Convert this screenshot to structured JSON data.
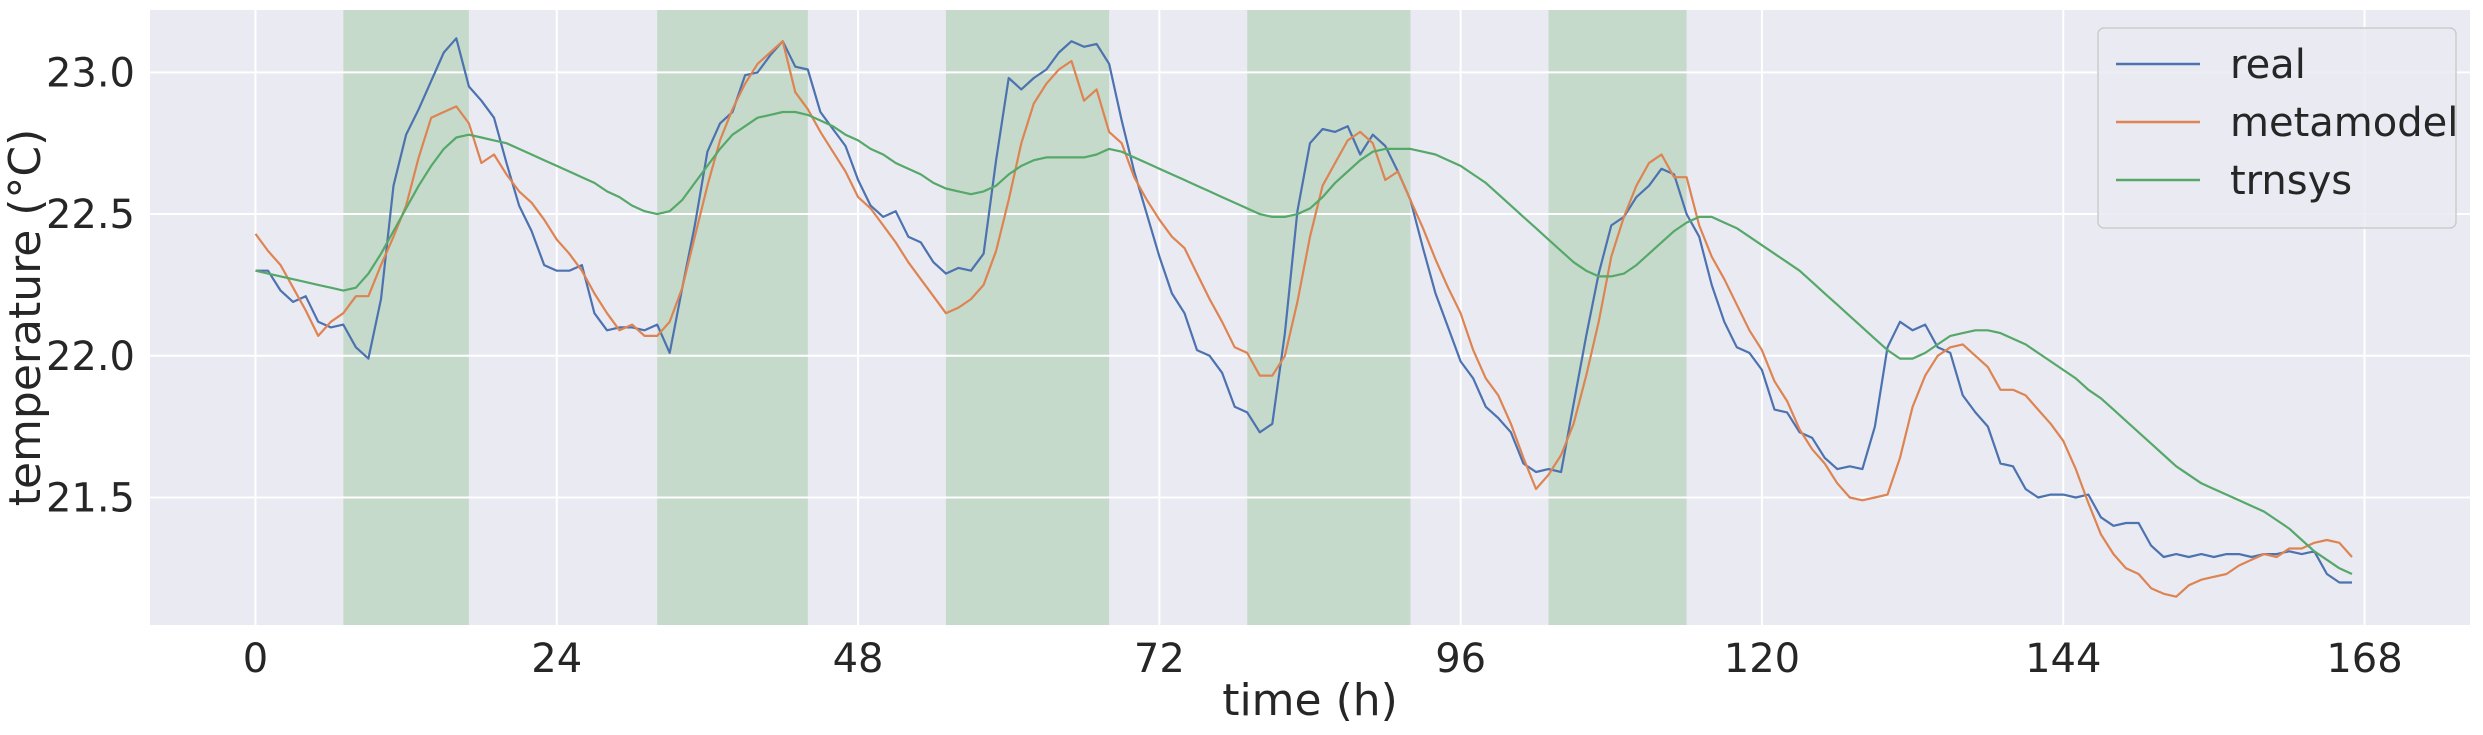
{
  "chart_data": {
    "type": "line",
    "title": "",
    "xlabel": "time (h)",
    "ylabel": "temperature (°C)",
    "xlim": [
      -8.4,
      176.4
    ],
    "ylim": [
      21.05,
      23.22
    ],
    "xticks": [
      0,
      24,
      48,
      72,
      96,
      120,
      144,
      168
    ],
    "yticks": [
      21.5,
      22.0,
      22.5,
      23.0
    ],
    "ytick_labels": [
      "21.5",
      "22.0",
      "22.5",
      "23.0"
    ],
    "grid": true,
    "legend_position": "top-right",
    "shaded_intervals": [
      [
        7,
        17
      ],
      [
        32,
        44
      ],
      [
        55,
        68
      ],
      [
        79,
        92
      ],
      [
        103,
        114
      ]
    ],
    "shade_color": "#c6dacb",
    "plot_background": "#eaeaf2",
    "series": [
      {
        "name": "real",
        "color": "#4c72b0",
        "x": [
          0,
          1,
          2,
          3,
          4,
          5,
          6,
          7,
          8,
          9,
          10,
          11,
          12,
          13,
          14,
          15,
          16,
          17,
          18,
          19,
          20,
          21,
          22,
          23,
          24,
          25,
          26,
          27,
          28,
          29,
          30,
          31,
          32,
          33,
          34,
          35,
          36,
          37,
          38,
          39,
          40,
          41,
          42,
          43,
          44,
          45,
          46,
          47,
          48,
          49,
          50,
          51,
          52,
          53,
          54,
          55,
          56,
          57,
          58,
          59,
          60,
          61,
          62,
          63,
          64,
          65,
          66,
          67,
          68,
          69,
          70,
          71,
          72,
          73,
          74,
          75,
          76,
          77,
          78,
          79,
          80,
          81,
          82,
          83,
          84,
          85,
          86,
          87,
          88,
          89,
          90,
          91,
          92,
          93,
          94,
          95,
          96,
          97,
          98,
          99,
          100,
          101,
          102,
          103,
          104,
          105,
          106,
          107,
          108,
          109,
          110,
          111,
          112,
          113,
          114,
          115,
          116,
          117,
          118,
          119,
          120,
          121,
          122,
          123,
          124,
          125,
          126,
          127,
          128,
          129,
          130,
          131,
          132,
          133,
          134,
          135,
          136,
          137,
          138,
          139,
          140,
          141,
          142,
          143,
          144,
          145,
          146,
          147,
          148,
          149,
          150,
          151,
          152,
          153,
          154,
          155,
          156,
          157,
          158,
          159,
          160,
          161,
          162,
          163,
          164,
          165,
          166,
          167
        ],
        "y": [
          22.3,
          22.3,
          22.23,
          22.19,
          22.21,
          22.12,
          22.1,
          22.11,
          22.03,
          21.99,
          22.2,
          22.6,
          22.78,
          22.87,
          22.97,
          23.07,
          23.12,
          22.95,
          22.9,
          22.84,
          22.68,
          22.53,
          22.44,
          22.32,
          22.3,
          22.3,
          22.32,
          22.15,
          22.09,
          22.1,
          22.1,
          22.09,
          22.11,
          22.01,
          22.24,
          22.46,
          22.72,
          22.82,
          22.86,
          22.99,
          23.0,
          23.06,
          23.11,
          23.02,
          23.01,
          22.86,
          22.8,
          22.74,
          22.62,
          22.53,
          22.49,
          22.51,
          22.42,
          22.4,
          22.33,
          22.29,
          22.31,
          22.3,
          22.36,
          22.69,
          22.98,
          22.94,
          22.98,
          23.01,
          23.07,
          23.11,
          23.09,
          23.1,
          23.03,
          22.83,
          22.65,
          22.5,
          22.35,
          22.22,
          22.15,
          22.02,
          22.0,
          21.94,
          21.82,
          21.8,
          21.73,
          21.76,
          22.08,
          22.51,
          22.75,
          22.8,
          22.79,
          22.81,
          22.71,
          22.78,
          22.74,
          22.65,
          22.55,
          22.38,
          22.22,
          22.1,
          21.98,
          21.92,
          21.82,
          21.78,
          21.73,
          21.62,
          21.59,
          21.6,
          21.59,
          21.83,
          22.07,
          22.29,
          22.46,
          22.49,
          22.56,
          22.6,
          22.66,
          22.64,
          22.5,
          22.42,
          22.25,
          22.12,
          22.03,
          22.01,
          21.95,
          21.81,
          21.8,
          21.73,
          21.71,
          21.64,
          21.6,
          21.61,
          21.6,
          21.75,
          22.03,
          22.12,
          22.09,
          22.11,
          22.03,
          22.01,
          21.86,
          21.8,
          21.75,
          21.62,
          21.61,
          21.53,
          21.5,
          21.51,
          21.51,
          21.5,
          21.51,
          21.43,
          21.4,
          21.41,
          21.41,
          21.33,
          21.29,
          21.3,
          21.29,
          21.3,
          21.29,
          21.3,
          21.3,
          21.29,
          21.3,
          21.3,
          21.31,
          21.3,
          21.31,
          21.23,
          21.2,
          21.2
        ]
      },
      {
        "name": "metamodel",
        "color": "#dd8452",
        "x": [
          0,
          1,
          2,
          3,
          4,
          5,
          6,
          7,
          8,
          9,
          10,
          11,
          12,
          13,
          14,
          15,
          16,
          17,
          18,
          19,
          20,
          21,
          22,
          23,
          24,
          25,
          26,
          27,
          28,
          29,
          30,
          31,
          32,
          33,
          34,
          35,
          36,
          37,
          38,
          39,
          40,
          41,
          42,
          43,
          44,
          45,
          46,
          47,
          48,
          49,
          50,
          51,
          52,
          53,
          54,
          55,
          56,
          57,
          58,
          59,
          60,
          61,
          62,
          63,
          64,
          65,
          66,
          67,
          68,
          69,
          70,
          71,
          72,
          73,
          74,
          75,
          76,
          77,
          78,
          79,
          80,
          81,
          82,
          83,
          84,
          85,
          86,
          87,
          88,
          89,
          90,
          91,
          92,
          93,
          94,
          95,
          96,
          97,
          98,
          99,
          100,
          101,
          102,
          103,
          104,
          105,
          106,
          107,
          108,
          109,
          110,
          111,
          112,
          113,
          114,
          115,
          116,
          117,
          118,
          119,
          120,
          121,
          122,
          123,
          124,
          125,
          126,
          127,
          128,
          129,
          130,
          131,
          132,
          133,
          134,
          135,
          136,
          137,
          138,
          139,
          140,
          141,
          142,
          143,
          144,
          145,
          146,
          147,
          148,
          149,
          150,
          151,
          152,
          153,
          154,
          155,
          156,
          157,
          158,
          159,
          160,
          161,
          162,
          163,
          164,
          165,
          166,
          167
        ],
        "y": [
          22.43,
          22.37,
          22.32,
          22.24,
          22.16,
          22.07,
          22.12,
          22.15,
          22.21,
          22.21,
          22.32,
          22.42,
          22.53,
          22.7,
          22.84,
          22.86,
          22.88,
          22.82,
          22.68,
          22.71,
          22.64,
          22.58,
          22.54,
          22.48,
          22.41,
          22.36,
          22.3,
          22.22,
          22.15,
          22.09,
          22.11,
          22.07,
          22.07,
          22.12,
          22.24,
          22.42,
          22.6,
          22.76,
          22.87,
          22.96,
          23.03,
          23.07,
          23.11,
          22.93,
          22.87,
          22.79,
          22.72,
          22.65,
          22.56,
          22.52,
          22.46,
          22.4,
          22.33,
          22.27,
          22.21,
          22.15,
          22.17,
          22.2,
          22.25,
          22.37,
          22.55,
          22.75,
          22.89,
          22.96,
          23.01,
          23.04,
          22.9,
          22.94,
          22.79,
          22.75,
          22.63,
          22.55,
          22.48,
          22.42,
          22.38,
          22.29,
          22.2,
          22.12,
          22.03,
          22.01,
          21.93,
          21.93,
          22.0,
          22.19,
          22.42,
          22.6,
          22.68,
          22.76,
          22.79,
          22.75,
          22.62,
          22.65,
          22.55,
          22.45,
          22.34,
          22.24,
          22.15,
          22.02,
          21.92,
          21.86,
          21.76,
          21.64,
          21.53,
          21.58,
          21.65,
          21.76,
          21.93,
          22.12,
          22.35,
          22.49,
          22.6,
          22.68,
          22.71,
          22.63,
          22.63,
          22.46,
          22.35,
          22.27,
          22.18,
          22.09,
          22.02,
          21.91,
          21.84,
          21.74,
          21.67,
          21.62,
          21.55,
          21.5,
          21.49,
          21.5,
          21.51,
          21.64,
          21.82,
          21.93,
          22.0,
          22.03,
          22.04,
          22.0,
          21.96,
          21.88,
          21.88,
          21.86,
          21.81,
          21.76,
          21.7,
          21.6,
          21.48,
          21.37,
          21.3,
          21.25,
          21.23,
          21.18,
          21.16,
          21.15,
          21.19,
          21.21,
          21.22,
          21.23,
          21.26,
          21.28,
          21.3,
          21.29,
          21.32,
          21.32,
          21.34,
          21.35,
          21.34,
          21.29
        ]
      },
      {
        "name": "trnsys",
        "color": "#55a868",
        "x": [
          0,
          1,
          2,
          3,
          4,
          5,
          6,
          7,
          8,
          9,
          10,
          11,
          12,
          13,
          14,
          15,
          16,
          17,
          18,
          19,
          20,
          21,
          22,
          23,
          24,
          25,
          26,
          27,
          28,
          29,
          30,
          31,
          32,
          33,
          34,
          35,
          36,
          37,
          38,
          39,
          40,
          41,
          42,
          43,
          44,
          45,
          46,
          47,
          48,
          49,
          50,
          51,
          52,
          53,
          54,
          55,
          56,
          57,
          58,
          59,
          60,
          61,
          62,
          63,
          64,
          65,
          66,
          67,
          68,
          69,
          70,
          71,
          72,
          73,
          74,
          75,
          76,
          77,
          78,
          79,
          80,
          81,
          82,
          83,
          84,
          85,
          86,
          87,
          88,
          89,
          90,
          91,
          92,
          93,
          94,
          95,
          96,
          97,
          98,
          99,
          100,
          101,
          102,
          103,
          104,
          105,
          106,
          107,
          108,
          109,
          110,
          111,
          112,
          113,
          114,
          115,
          116,
          117,
          118,
          119,
          120,
          121,
          122,
          123,
          124,
          125,
          126,
          127,
          128,
          129,
          130,
          131,
          132,
          133,
          134,
          135,
          136,
          137,
          138,
          139,
          140,
          141,
          142,
          143,
          144,
          145,
          146,
          147,
          148,
          149,
          150,
          151,
          152,
          153,
          154,
          155,
          156,
          157,
          158,
          159,
          160,
          161,
          162,
          163,
          164,
          165,
          166,
          167
        ],
        "y": [
          22.3,
          22.29,
          22.28,
          22.27,
          22.26,
          22.25,
          22.24,
          22.23,
          22.24,
          22.29,
          22.36,
          22.44,
          22.52,
          22.6,
          22.67,
          22.73,
          22.77,
          22.78,
          22.77,
          22.76,
          22.75,
          22.73,
          22.71,
          22.69,
          22.67,
          22.65,
          22.63,
          22.61,
          22.58,
          22.56,
          22.53,
          22.51,
          22.5,
          22.51,
          22.55,
          22.61,
          22.67,
          22.73,
          22.78,
          22.81,
          22.84,
          22.85,
          22.86,
          22.86,
          22.85,
          22.83,
          22.81,
          22.78,
          22.76,
          22.73,
          22.71,
          22.68,
          22.66,
          22.64,
          22.61,
          22.59,
          22.58,
          22.57,
          22.58,
          22.6,
          22.64,
          22.67,
          22.69,
          22.7,
          22.7,
          22.7,
          22.7,
          22.71,
          22.73,
          22.72,
          22.7,
          22.68,
          22.66,
          22.64,
          22.62,
          22.6,
          22.58,
          22.56,
          22.54,
          22.52,
          22.5,
          22.49,
          22.49,
          22.5,
          22.52,
          22.56,
          22.61,
          22.65,
          22.69,
          22.72,
          22.73,
          22.73,
          22.73,
          22.72,
          22.71,
          22.69,
          22.67,
          22.64,
          22.61,
          22.57,
          22.53,
          22.49,
          22.45,
          22.41,
          22.37,
          22.33,
          22.3,
          22.28,
          22.28,
          22.29,
          22.32,
          22.36,
          22.4,
          22.44,
          22.47,
          22.49,
          22.49,
          22.47,
          22.45,
          22.42,
          22.39,
          22.36,
          22.33,
          22.3,
          22.26,
          22.22,
          22.18,
          22.14,
          22.1,
          22.06,
          22.02,
          21.99,
          21.99,
          22.01,
          22.04,
          22.07,
          22.08,
          22.09,
          22.09,
          22.08,
          22.06,
          22.04,
          22.01,
          21.98,
          21.95,
          21.92,
          21.88,
          21.85,
          21.81,
          21.77,
          21.73,
          21.69,
          21.65,
          21.61,
          21.58,
          21.55,
          21.53,
          21.51,
          21.49,
          21.47,
          21.45,
          21.42,
          21.39,
          21.35,
          21.31,
          21.28,
          21.25,
          21.23
        ]
      }
    ]
  }
}
